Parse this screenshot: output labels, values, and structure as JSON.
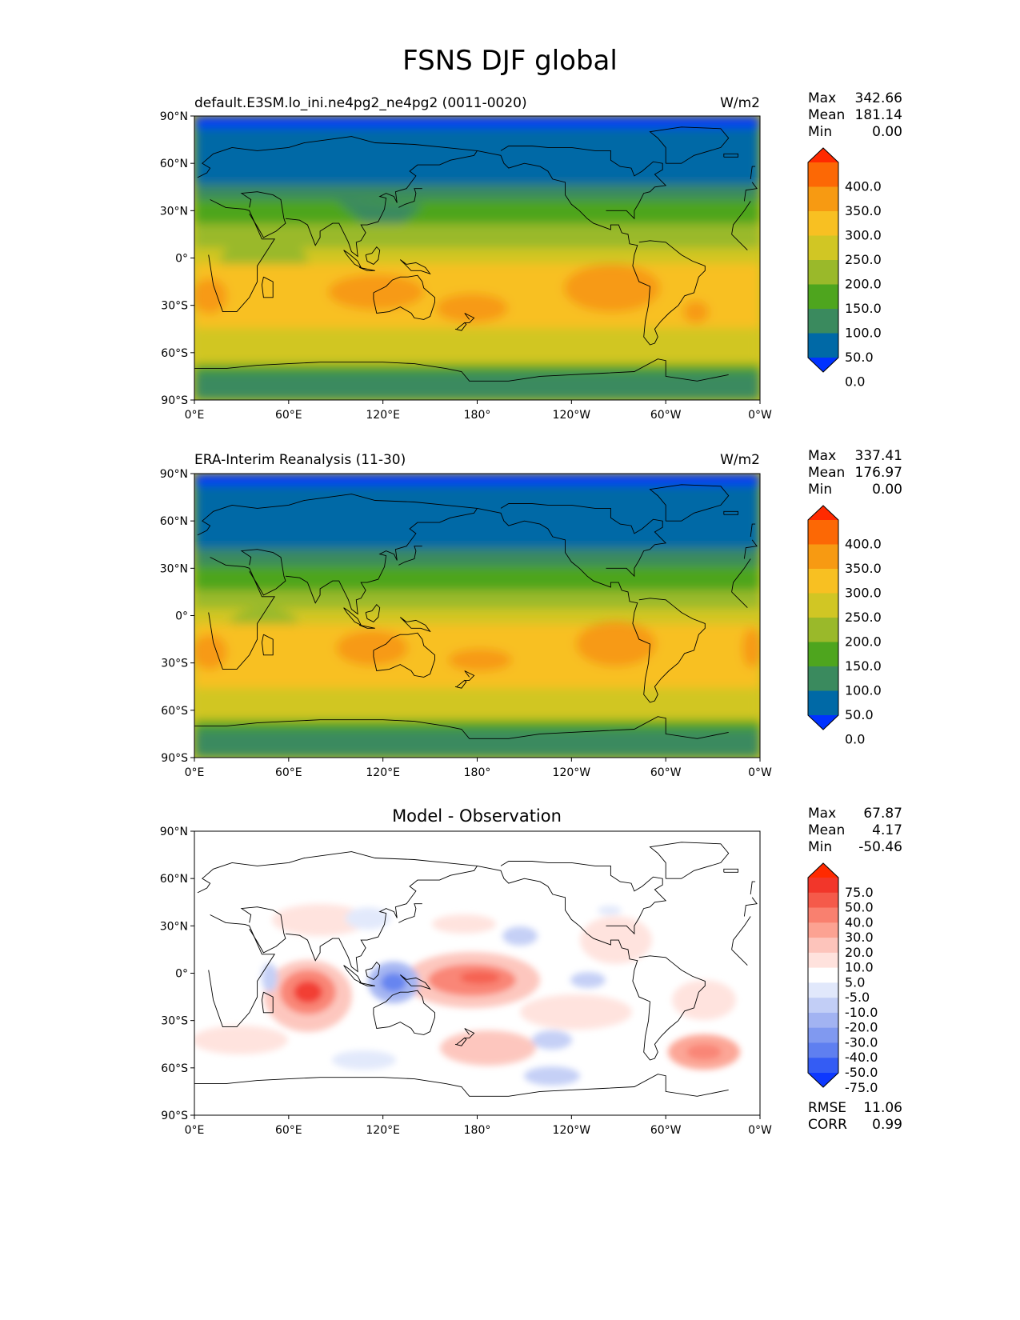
{
  "title": "FSNS DJF global",
  "axes": {
    "lat_ticks": [
      "90°N",
      "60°N",
      "30°N",
      "0°",
      "30°S",
      "60°S",
      "90°S"
    ],
    "lon_ticks": [
      "0°E",
      "60°E",
      "120°E",
      "180°",
      "120°W",
      "60°W",
      "0°W"
    ]
  },
  "stat_labels": {
    "max": "Max",
    "mean": "Mean",
    "min": "Min",
    "rmse": "RMSE",
    "corr": "CORR"
  },
  "panels": [
    {
      "id": "model",
      "left_title": "default.E3SM.lo_ini.ne4pg2_ne4pg2 (0011-0020)",
      "center_title": "",
      "units": "W/m2",
      "stats": {
        "max": "342.66",
        "mean": "181.14",
        "min": "0.00"
      },
      "colorbar_levels": [
        "400.0",
        "350.0",
        "300.0",
        "250.0",
        "200.0",
        "150.0",
        "100.0",
        "50.0",
        "0.0"
      ]
    },
    {
      "id": "obs",
      "left_title": "ERA-Interim Reanalysis (11-30)",
      "center_title": "",
      "units": "W/m2",
      "stats": {
        "max": "337.41",
        "mean": "176.97",
        "min": "0.00"
      },
      "colorbar_levels": [
        "400.0",
        "350.0",
        "300.0",
        "250.0",
        "200.0",
        "150.0",
        "100.0",
        "50.0",
        "0.0"
      ]
    },
    {
      "id": "diff",
      "left_title": "",
      "center_title": "Model - Observation",
      "units": "",
      "stats": {
        "max": "67.87",
        "mean": "4.17",
        "min": "-50.46"
      },
      "extra_stats": {
        "rmse": "11.06",
        "corr": "0.99"
      },
      "colorbar_levels": [
        "75.0",
        "50.0",
        "40.0",
        "30.0",
        "20.0",
        "10.0",
        "5.0",
        "-5.0",
        "-10.0",
        "-20.0",
        "-30.0",
        "-40.0",
        "-50.0",
        "-75.0"
      ]
    }
  ],
  "colors": {
    "field_scale": [
      "#0032ff",
      "#0069a6",
      "#3a8a5e",
      "#4ea51e",
      "#9ab92a",
      "#d1c624",
      "#f8c022",
      "#f79a12",
      "#fc6805",
      "#ff2a00"
    ],
    "diff_scale": [
      "#0d38ff",
      "#345cf4",
      "#5f7ff0",
      "#8099f0",
      "#a2b3f2",
      "#c2cef6",
      "#e1e8fb",
      "#ffffff",
      "#ffe2dd",
      "#fdc4bb",
      "#fca292",
      "#f9806f",
      "#f55a4a",
      "#f2362a",
      "#ff2a00"
    ]
  }
}
